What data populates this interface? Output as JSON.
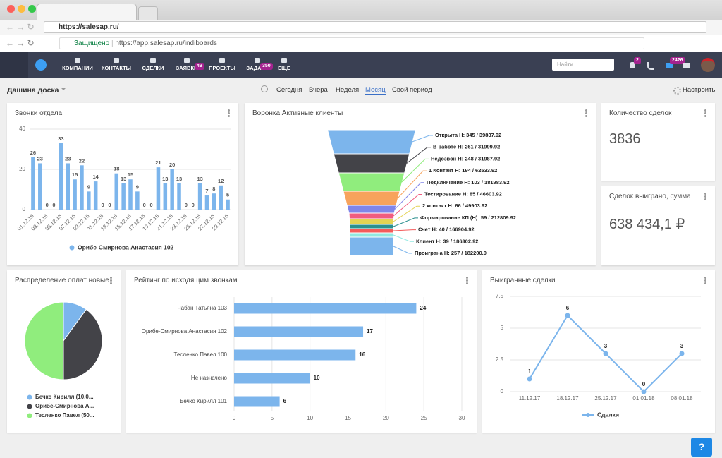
{
  "browser": {
    "outer_url": "https://salesap.ru/",
    "secure_label": "Защищено",
    "url": "https://app.salesap.ru/indiboards"
  },
  "navbar": {
    "items": [
      {
        "label": "КОМПАНИИ"
      },
      {
        "label": "КОНТАКТЫ"
      },
      {
        "label": "СДЕЛКИ"
      },
      {
        "label": "ЗАЯВКИ",
        "badge": 49
      },
      {
        "label": "ПРОЕКТЫ"
      },
      {
        "label": "ЗАДАЧИ",
        "badge": 350
      },
      {
        "label": "ЕЩЕ"
      }
    ],
    "search_placeholder": "Найти...",
    "notifications_badge": 2,
    "messages_badge": 2426
  },
  "toolbar": {
    "board_name": "Дашина доска",
    "periods": [
      "Сегодня",
      "Вчера",
      "Неделя",
      "Месяц",
      "Свой период"
    ],
    "active_period": 3,
    "settings": "Настроить"
  },
  "widgets": [
    {
      "title": "Звонки отдела",
      "chart_data": {
        "type": "bar",
        "categories": [
          "01.12.16",
          null,
          "03.12.16",
          null,
          "05.12.16",
          null,
          "07.12.16",
          null,
          "09.12.16",
          null,
          "11.12.16",
          null,
          "13.12.16",
          null,
          "15.12.16",
          null,
          "17.12.16",
          null,
          "19.12.16",
          null,
          "21.12.16",
          null,
          "23.12.16",
          null,
          "25.12.16",
          null,
          "27.12.16",
          null,
          "29.12.16"
        ],
        "series": [
          {
            "name": "Орибе-Смирнова Анастасия 102",
            "color": "#7cb5ec",
            "values": [
              26,
              23,
              0,
              0,
              33,
              23,
              15,
              22,
              9,
              14,
              0,
              0,
              18,
              13,
              15,
              9,
              0,
              0,
              21,
              13,
              20,
              13,
              0,
              0,
              13,
              7,
              8,
              12,
              5
            ]
          }
        ],
        "ylim": [
          0,
          40
        ],
        "yticks": [
          0,
          20,
          40
        ],
        "grid": true
      }
    },
    {
      "title": "Воронка Активные клиенты",
      "chart_data": {
        "type": "funnel",
        "categories": [
          "Открыта Н: 345 / 39837.92",
          "В работе Н: 261 / 31999.92",
          "Недозвон Н: 248 / 31987.92",
          "1 Контакт Н: 194 / 62533.92",
          "Подключение Н: 103 / 181983.92",
          "Тестирование Н: 85 / 46603.92",
          "2 контакт Н: 66 / 49903.92",
          "Формирование КП (Н): 59 / 212809.92",
          "Счет Н: 40 / 166904.92",
          "Клиент Н: 39 / 186302.92",
          "Проиграна Н: 257 / 182200.0"
        ],
        "colors": [
          "#7cb5ec",
          "#434348",
          "#90ed7d",
          "#f7a35c",
          "#8085e9",
          "#f15c80",
          "#e4d354",
          "#2b908f",
          "#f45b5b",
          "#91e8e1",
          "#7cb5ec"
        ]
      }
    },
    {
      "title": "Количество сделок",
      "value": 3836
    },
    {
      "title": "Сделок выиграно, сумма",
      "value": 638434.1,
      "value_label": "638 434,1 ₽"
    },
    {
      "title": "Распределение оплат новые",
      "chart_data": {
        "type": "pie",
        "categories": [
          "Бечко Кирилл (10.0...",
          "Орибе-Смирнова А...",
          "Тесленко Павел (50..."
        ],
        "values": [
          10,
          40,
          50
        ],
        "colors": [
          "#7cb5ec",
          "#434348",
          "#90ed7d"
        ]
      }
    },
    {
      "title": "Рейтинг по исходящим звонкам",
      "chart_data": {
        "type": "hbar",
        "categories": [
          "Чабан Татьяна 103",
          "Орибе-Смирнова Анастасия 102",
          "Тесленко Павел 100",
          "Не назначено",
          "Бечко Кирилл 101"
        ],
        "values": [
          24,
          17,
          16,
          10,
          6
        ],
        "color": "#7cb5ec",
        "xlim": [
          0,
          30
        ],
        "xticks": [
          0,
          5,
          10,
          15,
          20,
          25,
          30
        ],
        "grid": true
      }
    },
    {
      "title": "Выигранные сделки",
      "chart_data": {
        "type": "line",
        "x": [
          "11.12.17",
          "18.12.17",
          "25.12.17",
          "01.01.18",
          "08.01.18"
        ],
        "series": [
          {
            "name": "Сделки",
            "color": "#7cb5ec",
            "values": [
              1,
              6,
              3,
              0,
              3
            ]
          }
        ],
        "ylim": [
          0,
          7.5
        ],
        "yticks": [
          0,
          2.5,
          5,
          7.5
        ],
        "grid": true
      }
    }
  ]
}
